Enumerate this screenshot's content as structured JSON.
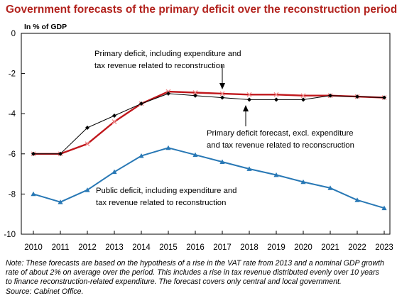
{
  "chart_data": {
    "type": "line",
    "title": "Government forecasts of the primary deficit over the reconstruction period",
    "unit_label": "In % of GDP",
    "x": [
      2010,
      2011,
      2012,
      2013,
      2014,
      2015,
      2016,
      2017,
      2018,
      2019,
      2020,
      2021,
      2022,
      2023
    ],
    "ylim": [
      -10,
      0
    ],
    "yticks": [
      0,
      -2,
      -4,
      -6,
      -8,
      -10
    ],
    "grid": false,
    "series": [
      {
        "key": "incl",
        "values": [
          -6.0,
          -6.0,
          -5.5,
          -4.4,
          -3.5,
          -2.9,
          -2.95,
          -3.0,
          -3.05,
          -3.05,
          -3.1,
          -3.1,
          -3.15,
          -3.2
        ],
        "color": "#c0171c",
        "marker": "x",
        "annotation": [
          "Primary deficit, including expenditure and",
          "tax revenue related to reconstruction"
        ]
      },
      {
        "key": "excl",
        "values": [
          -6.0,
          -6.0,
          -4.7,
          -4.1,
          -3.5,
          -3.0,
          -3.1,
          -3.2,
          -3.3,
          -3.3,
          -3.3,
          -3.1,
          -3.15,
          -3.2
        ],
        "color": "#000000",
        "marker": "diamond",
        "annotation": [
          "Primary deficit forecast, excl. expenditure",
          "and tax revenue related to reconscruction"
        ]
      },
      {
        "key": "public",
        "values": [
          -8.0,
          -8.4,
          -7.8,
          -6.9,
          -6.1,
          -5.7,
          -6.05,
          -6.4,
          -6.75,
          -7.05,
          -7.4,
          -7.7,
          -8.3,
          -8.7
        ],
        "color": "#2878b5",
        "marker": "triangle",
        "annotation": [
          "Public deficit, including expenditure and",
          "tax revenue related to reconstruction"
        ]
      }
    ]
  },
  "note": {
    "text": "Note: These forecasts are based on the hypothesis of a rise in the VAT rate from 2013 and a nominal GDP growth rate of about 2% on average over the period. This includes a rise in tax revenue distributed evenly over 10 years to finance reconstruction-related expenditure. The forecast covers only central and local government.",
    "source": "Source: Cabinet Office."
  }
}
